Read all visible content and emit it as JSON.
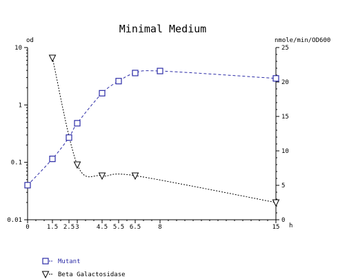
{
  "chart_data": {
    "type": "line",
    "title": "Minimal Medium",
    "xlabel": "h",
    "ylabel_left": "od",
    "ylabel_right": "nmole/min/OD600",
    "x_ticks": [
      0,
      1.5,
      2.5,
      3,
      4.5,
      5.5,
      6.5,
      8,
      15
    ],
    "x_tick_labels": [
      "0",
      "1.5",
      "2.5",
      "3",
      "4.5",
      "5.5",
      "6.5",
      "8",
      "15"
    ],
    "xlim": [
      0,
      15
    ],
    "y_left_scale": "log",
    "y_left_lim": [
      0.01,
      10
    ],
    "y_left_ticks": [
      0.01,
      0.1,
      1,
      10
    ],
    "y_left_tick_labels": [
      "0.01",
      "0.1",
      "1",
      "10"
    ],
    "y_right_lim": [
      0,
      25
    ],
    "y_right_ticks": [
      0,
      5,
      10,
      15,
      20,
      25
    ],
    "y_right_tick_labels": [
      "0",
      "5",
      "10",
      "15",
      "20",
      "25"
    ],
    "grid": false,
    "legend_position": "bottom-left",
    "series": [
      {
        "name": "Mutant",
        "axis": "left",
        "marker": "square",
        "line_style": "dashed",
        "color": "#2a2aa6",
        "x": [
          0,
          1.5,
          2.5,
          3,
          4.5,
          5.5,
          6.5,
          8,
          15
        ],
        "y": [
          0.04,
          0.115,
          0.27,
          0.48,
          1.6,
          2.6,
          3.6,
          3.9,
          2.9
        ]
      },
      {
        "name": "Beta Galactosidase",
        "axis": "right",
        "marker": "triangle-down",
        "line_style": "dotted",
        "color": "#000000",
        "x": [
          1.5,
          3,
          4.5,
          6.5,
          15
        ],
        "y": [
          23.5,
          8,
          6.4,
          6.4,
          2.5
        ]
      }
    ]
  }
}
